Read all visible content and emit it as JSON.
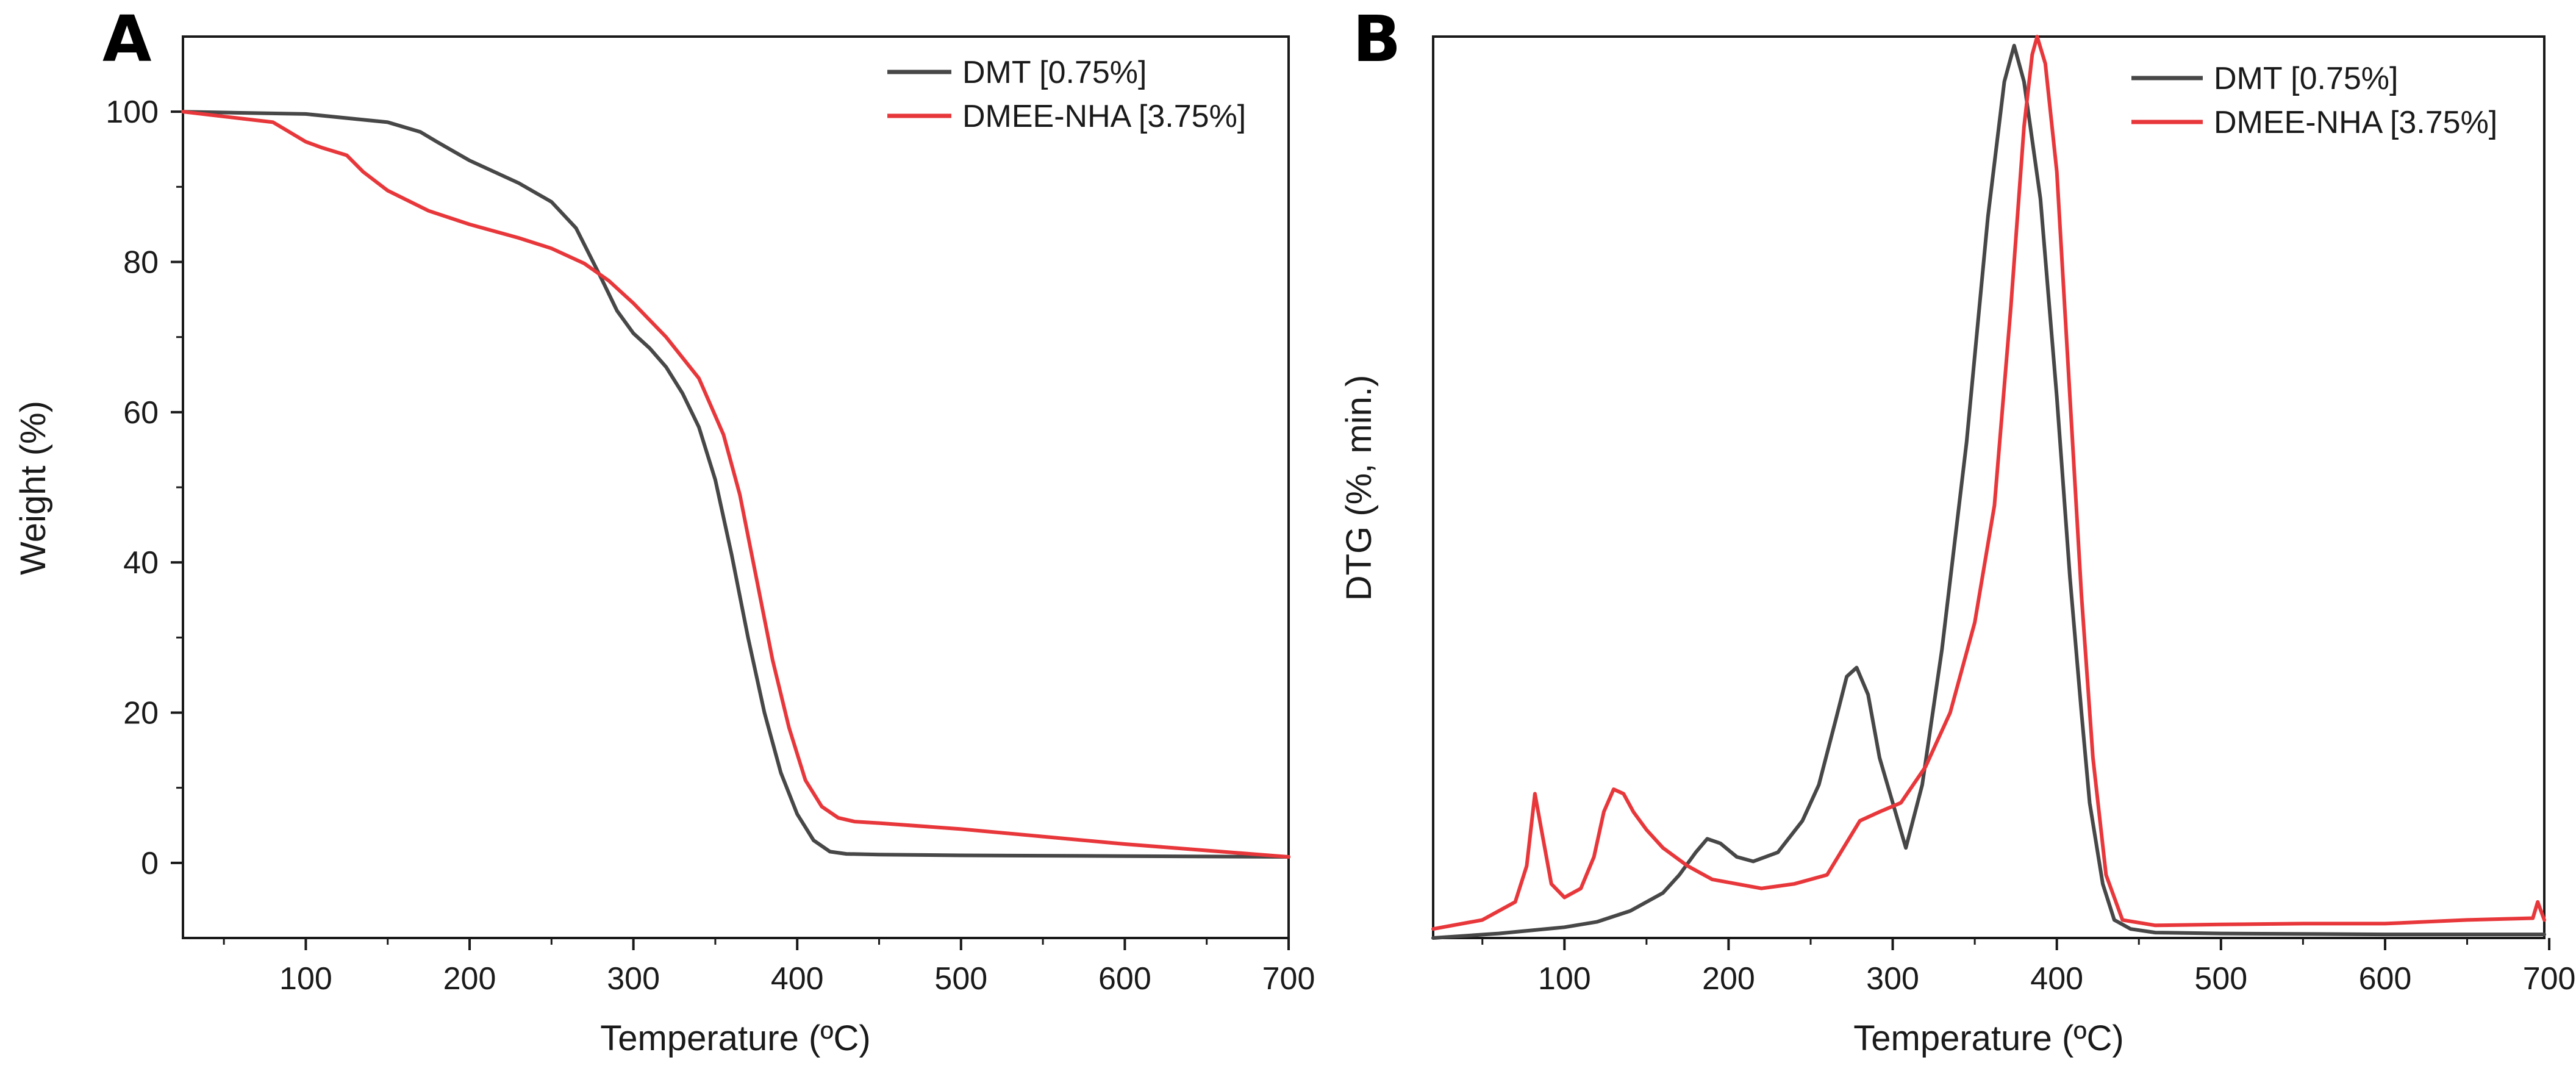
{
  "chart_data": [
    {
      "panel": "A",
      "type": "line",
      "title": "",
      "xlabel": "Temperature (ºC)",
      "ylabel": "Weight (%)",
      "xlim": [
        25,
        700
      ],
      "ylim": [
        -10,
        110
      ],
      "xticks": [
        100,
        200,
        300,
        400,
        500,
        600,
        700
      ],
      "yticks": [
        0,
        20,
        40,
        60,
        80,
        100
      ],
      "xtick_labels": [
        "100",
        "200",
        "300",
        "400",
        "500",
        "600",
        "700"
      ],
      "ytick_labels": [
        "0",
        "20",
        "40",
        "60",
        "80",
        "100"
      ],
      "legend_position": "top-right",
      "series": [
        {
          "name": "DMT [0.75%]",
          "color": "#474747",
          "x": [
            25,
            100,
            150,
            170,
            180,
            200,
            230,
            250,
            265,
            280,
            290,
            300,
            310,
            320,
            330,
            340,
            350,
            360,
            370,
            380,
            390,
            400,
            410,
            420,
            430,
            450,
            500,
            600,
            700
          ],
          "y": [
            100,
            99.7,
            98.6,
            97.3,
            96,
            93.5,
            90.5,
            88,
            84.5,
            78,
            73.5,
            70.5,
            68.5,
            66,
            62.5,
            58,
            51,
            41,
            30,
            20,
            12,
            6.5,
            3,
            1.5,
            1.2,
            1.1,
            1.0,
            0.9,
            0.8
          ]
        },
        {
          "name": "DMEE-NHA [3.75%]",
          "color": "#e8373b",
          "x": [
            25,
            80,
            90,
            100,
            110,
            125,
            135,
            150,
            175,
            200,
            230,
            250,
            270,
            285,
            300,
            320,
            340,
            355,
            365,
            375,
            385,
            395,
            405,
            415,
            425,
            435,
            450,
            500,
            600,
            700
          ],
          "y": [
            100,
            98.6,
            97.3,
            96,
            95.2,
            94.2,
            92,
            89.5,
            86.8,
            85,
            83.2,
            81.8,
            79.8,
            77.5,
            74.5,
            70,
            64.5,
            57,
            49,
            38,
            27,
            18,
            11,
            7.5,
            6,
            5.5,
            5.3,
            4.5,
            2.5,
            0.8
          ]
        }
      ]
    },
    {
      "panel": "B",
      "type": "line",
      "title": "",
      "xlabel": "Temperature (ºC)",
      "ylabel": "DTG (%, min.)",
      "xlim": [
        20,
        697
      ],
      "ylim": [
        0,
        1
      ],
      "ylabel_note": "relative units, no y tick labels",
      "xticks": [
        100,
        200,
        300,
        400,
        500,
        600,
        700
      ],
      "xtick_labels": [
        "100",
        "200",
        "300",
        "400",
        "500",
        "600",
        "700"
      ],
      "legend_position": "top-right",
      "series": [
        {
          "name": "DMT [0.75%]",
          "color": "#474747",
          "x": [
            20,
            60,
            100,
            120,
            140,
            160,
            170,
            180,
            187,
            195,
            205,
            215,
            230,
            245,
            255,
            265,
            272,
            278,
            285,
            292,
            300,
            308,
            318,
            330,
            345,
            358,
            368,
            374,
            380,
            390,
            400,
            408,
            415,
            420,
            428,
            435,
            445,
            460,
            500,
            600,
            697
          ],
          "y": [
            0.0,
            0.005,
            0.012,
            0.018,
            0.03,
            0.05,
            0.07,
            0.095,
            0.11,
            0.105,
            0.09,
            0.085,
            0.095,
            0.13,
            0.17,
            0.24,
            0.29,
            0.3,
            0.27,
            0.2,
            0.15,
            0.1,
            0.17,
            0.32,
            0.55,
            0.8,
            0.95,
            0.99,
            0.95,
            0.82,
            0.6,
            0.4,
            0.25,
            0.15,
            0.06,
            0.02,
            0.01,
            0.006,
            0.005,
            0.004,
            0.004
          ]
        },
        {
          "name": "DMEE-NHA [3.75%]",
          "color": "#e8373b",
          "x": [
            20,
            50,
            70,
            77,
            82,
            86,
            92,
            100,
            110,
            118,
            124,
            130,
            136,
            142,
            150,
            160,
            175,
            190,
            205,
            220,
            240,
            260,
            270,
            280,
            292,
            305,
            320,
            335,
            350,
            362,
            372,
            380,
            385,
            388,
            393,
            400,
            408,
            415,
            422,
            430,
            440,
            460,
            500,
            550,
            600,
            650,
            690,
            693,
            697
          ],
          "y": [
            0.01,
            0.02,
            0.04,
            0.08,
            0.16,
            0.12,
            0.06,
            0.045,
            0.055,
            0.09,
            0.14,
            0.165,
            0.16,
            0.14,
            0.12,
            0.1,
            0.08,
            0.065,
            0.06,
            0.055,
            0.06,
            0.07,
            0.1,
            0.13,
            0.14,
            0.15,
            0.19,
            0.25,
            0.35,
            0.48,
            0.7,
            0.9,
            0.98,
            1.0,
            0.97,
            0.85,
            0.6,
            0.38,
            0.2,
            0.07,
            0.02,
            0.014,
            0.015,
            0.016,
            0.016,
            0.02,
            0.022,
            0.04,
            0.02
          ]
        }
      ]
    }
  ]
}
